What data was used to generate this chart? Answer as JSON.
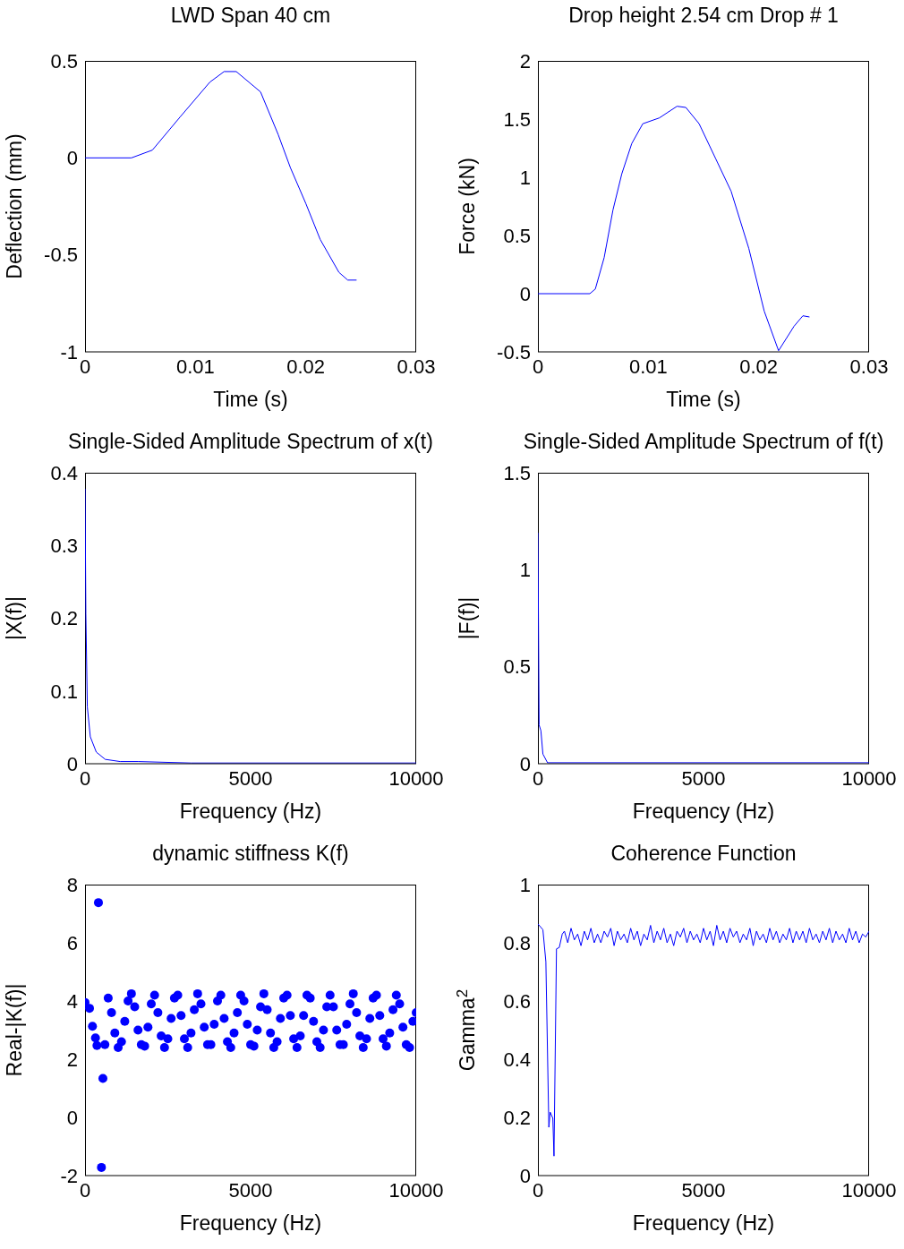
{
  "chart_data": [
    {
      "type": "line",
      "title": "LWD Span 40 cm",
      "xlabel": "Time (s)",
      "ylabel": "Deflection (mm)",
      "color": "#0000ff",
      "xlim": [
        0,
        0.03
      ],
      "xticks": [
        0,
        0.01,
        0.02,
        0.03
      ],
      "ylim": [
        -1,
        0.5
      ],
      "yticks": [
        -1,
        -0.5,
        0,
        0.5
      ],
      "x": [
        0,
        0.0042,
        0.0061,
        0.0086,
        0.0113,
        0.0126,
        0.0137,
        0.0159,
        0.0175,
        0.0186,
        0.02,
        0.0213,
        0.023,
        0.0238,
        0.0246
      ],
      "values": [
        0,
        0,
        0.04,
        0.21,
        0.39,
        0.445,
        0.445,
        0.34,
        0.12,
        -0.05,
        -0.235,
        -0.42,
        -0.59,
        -0.63,
        -0.63
      ]
    },
    {
      "type": "line",
      "title": "Drop height 2.54 cm Drop # 1",
      "xlabel": "Time (s)",
      "ylabel": "Force (kN)",
      "color": "#0000ff",
      "xlim": [
        0,
        0.03
      ],
      "xticks": [
        0,
        0.01,
        0.02,
        0.03
      ],
      "ylim": [
        -0.5,
        2
      ],
      "yticks": [
        -0.5,
        0,
        0.5,
        1,
        1.5,
        2
      ],
      "x": [
        0,
        0.0047,
        0.0052,
        0.006,
        0.0068,
        0.0076,
        0.0085,
        0.0095,
        0.011,
        0.0126,
        0.0134,
        0.0146,
        0.0161,
        0.0175,
        0.0191,
        0.0205,
        0.0218,
        0.0232,
        0.024,
        0.0246
      ],
      "values": [
        0,
        0,
        0.04,
        0.31,
        0.72,
        1.03,
        1.29,
        1.46,
        1.51,
        1.61,
        1.6,
        1.46,
        1.16,
        0.88,
        0.39,
        -0.15,
        -0.49,
        -0.28,
        -0.19,
        -0.2
      ]
    },
    {
      "type": "line",
      "title": "Single-Sided Amplitude Spectrum of x(t)",
      "xlabel": "Frequency (Hz)",
      "ylabel": "|X(f)|",
      "color": "#0000ff",
      "xlim": [
        0,
        10000
      ],
      "xticks": [
        0,
        5000,
        10000
      ],
      "ylim": [
        0,
        0.4
      ],
      "yticks": [
        0,
        0.1,
        0.2,
        0.3,
        0.4
      ],
      "x": [
        0,
        25,
        70,
        160,
        340,
        610,
        1060,
        1600,
        3200,
        5000,
        10000
      ],
      "values": [
        0.378,
        0.206,
        0.078,
        0.037,
        0.016,
        0.006,
        0.003,
        0.003,
        0.001,
        0.001,
        0.001
      ]
    },
    {
      "type": "line",
      "title": "Single-Sided Amplitude Spectrum of f(t)",
      "xlabel": "Frequency (Hz)",
      "ylabel": "|F(f)|",
      "color": "#0000ff",
      "xlim": [
        0,
        10000
      ],
      "xticks": [
        0,
        5000,
        10000
      ],
      "ylim": [
        0,
        1.5
      ],
      "yticks": [
        0,
        0.5,
        1,
        1.5
      ],
      "x": [
        0,
        36,
        90,
        150,
        290,
        5000,
        10000
      ],
      "values": [
        1.19,
        0.2,
        0.17,
        0.05,
        0.005,
        0.005,
        0.005
      ]
    },
    {
      "type": "scatter",
      "title": "dynamic stiffness K(f)",
      "xlabel": "Frequency (Hz)",
      "ylabel": "Real-|K(f)|",
      "color": "#0000ff",
      "marker": "circle",
      "xlim": [
        0,
        10000
      ],
      "xticks": [
        0,
        5000,
        10000
      ],
      "ylim": [
        -2,
        8
      ],
      "yticks": [
        -2,
        0,
        2,
        4,
        6,
        8
      ],
      "x": [
        0,
        135,
        225,
        315,
        360,
        405,
        495,
        540,
        600,
        700,
        800,
        900,
        1000,
        1100,
        1200,
        1300,
        1400,
        1500,
        1600,
        1700,
        1800,
        1900,
        2000,
        2100,
        2200,
        2300,
        2400,
        2500,
        2600,
        2700,
        2800,
        2900,
        3000,
        3100,
        3200,
        3300,
        3400,
        3500,
        3600,
        3700,
        3800,
        3900,
        4000,
        4100,
        4200,
        4300,
        4400,
        4500,
        4600,
        4700,
        4800,
        4900,
        5000,
        5100,
        5200,
        5300,
        5400,
        5500,
        5600,
        5700,
        5800,
        5900,
        6000,
        6100,
        6200,
        6300,
        6400,
        6500,
        6600,
        6700,
        6800,
        6900,
        7000,
        7100,
        7200,
        7300,
        7400,
        7500,
        7600,
        7700,
        7800,
        7900,
        8000,
        8100,
        8200,
        8300,
        8400,
        8500,
        8600,
        8700,
        8800,
        8900,
        9000,
        9100,
        9200,
        9300,
        9400,
        9500,
        9600,
        9700,
        9800,
        9900,
        10000
      ],
      "values": [
        3.95,
        3.75,
        3.13,
        2.73,
        2.47,
        7.38,
        -1.72,
        1.34,
        2.5,
        4.1,
        3.6,
        2.9,
        2.4,
        2.6,
        3.3,
        4.0,
        4.25,
        3.8,
        3.0,
        2.5,
        2.45,
        3.1,
        3.9,
        4.2,
        3.6,
        2.8,
        2.4,
        2.7,
        3.4,
        4.1,
        4.2,
        3.5,
        2.7,
        2.4,
        2.9,
        3.7,
        4.25,
        3.9,
        3.1,
        2.5,
        2.5,
        3.2,
        4.0,
        4.2,
        3.4,
        2.6,
        2.4,
        2.9,
        3.6,
        4.2,
        4.0,
        3.2,
        2.5,
        2.45,
        3.0,
        3.8,
        4.25,
        3.7,
        2.9,
        2.4,
        2.6,
        3.4,
        4.1,
        4.2,
        3.5,
        2.7,
        2.4,
        2.8,
        3.5,
        4.2,
        4.1,
        3.3,
        2.6,
        2.4,
        3.0,
        3.8,
        4.2,
        3.8,
        3.0,
        2.5,
        2.5,
        3.2,
        3.9,
        4.25,
        3.6,
        2.8,
        2.4,
        2.7,
        3.4,
        4.1,
        4.2,
        3.5,
        2.7,
        2.45,
        2.9,
        3.7,
        4.2,
        3.9,
        3.1,
        2.5,
        2.4,
        3.3,
        3.6
      ]
    },
    {
      "type": "line",
      "title": "Coherence Function",
      "xlabel": "Frequency (Hz)",
      "ylabel": "Gamma$^{2}$",
      "color": "#0000ff",
      "xlim": [
        0,
        10000
      ],
      "xticks": [
        0,
        5000,
        10000
      ],
      "ylim": [
        0,
        1
      ],
      "yticks": [
        0,
        0.2,
        0.4,
        0.6,
        0.8,
        1
      ],
      "x": [
        0,
        150,
        240,
        330,
        370,
        450,
        485,
        560,
        645,
        735,
        800,
        900,
        1000,
        1100,
        1200,
        1300,
        1400,
        1500,
        1600,
        1700,
        1800,
        1900,
        2000,
        2100,
        2200,
        2300,
        2400,
        2500,
        2600,
        2700,
        2800,
        2900,
        3000,
        3100,
        3200,
        3300,
        3400,
        3500,
        3600,
        3700,
        3800,
        3900,
        4000,
        4100,
        4200,
        4300,
        4400,
        4500,
        4600,
        4700,
        4800,
        4900,
        5000,
        5100,
        5200,
        5300,
        5400,
        5500,
        5600,
        5700,
        5800,
        5900,
        6000,
        6100,
        6200,
        6300,
        6400,
        6500,
        6600,
        6700,
        6800,
        6900,
        7000,
        7100,
        7200,
        7300,
        7400,
        7500,
        7600,
        7700,
        7800,
        7900,
        8000,
        8100,
        8200,
        8300,
        8400,
        8500,
        8600,
        8700,
        8800,
        8900,
        9000,
        9100,
        9200,
        9300,
        9400,
        9500,
        9600,
        9700,
        9800,
        9900,
        10000
      ],
      "values": [
        0.865,
        0.845,
        0.735,
        0.166,
        0.218,
        0.197,
        0.067,
        0.779,
        0.784,
        0.83,
        0.84,
        0.8,
        0.85,
        0.81,
        0.83,
        0.79,
        0.84,
        0.81,
        0.85,
        0.8,
        0.83,
        0.8,
        0.84,
        0.82,
        0.85,
        0.79,
        0.84,
        0.81,
        0.83,
        0.8,
        0.85,
        0.81,
        0.84,
        0.79,
        0.83,
        0.81,
        0.86,
        0.8,
        0.84,
        0.81,
        0.85,
        0.8,
        0.83,
        0.79,
        0.84,
        0.82,
        0.85,
        0.8,
        0.84,
        0.81,
        0.83,
        0.8,
        0.85,
        0.81,
        0.84,
        0.79,
        0.86,
        0.81,
        0.84,
        0.8,
        0.85,
        0.82,
        0.84,
        0.8,
        0.83,
        0.81,
        0.85,
        0.79,
        0.84,
        0.81,
        0.83,
        0.8,
        0.85,
        0.81,
        0.84,
        0.8,
        0.83,
        0.81,
        0.85,
        0.8,
        0.84,
        0.81,
        0.84,
        0.8,
        0.85,
        0.81,
        0.83,
        0.8,
        0.84,
        0.81,
        0.85,
        0.8,
        0.84,
        0.81,
        0.83,
        0.8,
        0.85,
        0.81,
        0.84,
        0.8,
        0.83,
        0.82,
        0.84
      ]
    }
  ]
}
